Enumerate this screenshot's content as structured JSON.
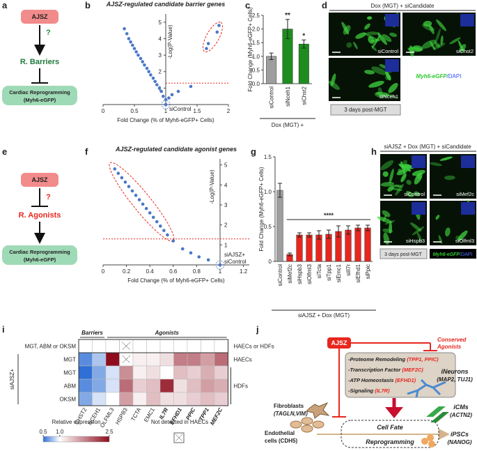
{
  "panel_labels": [
    "a",
    "b",
    "c",
    "d",
    "e",
    "f",
    "g",
    "h",
    "i",
    "j"
  ],
  "diagram_a": {
    "top": "AJSZ",
    "mark": "?",
    "middle": "R. Barriers",
    "bottom": "Cardiac Reprogramming",
    "bottom_note": "(Myh6-eGFP)"
  },
  "diagram_e": {
    "top": "AJSZ",
    "mark": "?",
    "middle": "R. Agonists",
    "bottom": "Cardiac Reprogramming",
    "bottom_note": "(Myh6-eGFP)"
  },
  "image_d": {
    "title": "Dox (MGT) + siCandidate",
    "tiles": [
      "siControl",
      "siChst2",
      "siNceh1"
    ],
    "stain": "Myh6-eGFP",
    "stain2": "/DAPI",
    "caption": "3 days post-MGT"
  },
  "image_h": {
    "title": "siAJSZ + Dox (MGT) + siCandidate",
    "tiles": [
      "siControl",
      "siMef2c",
      "siHspb3",
      "siOlfml3"
    ],
    "stain": "Myh6-eGFP",
    "stain2": "/DAPI",
    "caption": "3 days post-MGT"
  },
  "chart_data": [
    {
      "type": "scatter",
      "title": "AJSZ-regulated candidate barrier genes",
      "xlabel": "Fold Change (% of Myh6-eGFP+ Cells)",
      "ylabel": "-Log(P-Value)",
      "x": [
        0.34,
        0.38,
        0.41,
        0.44,
        0.47,
        0.5,
        0.53,
        0.56,
        0.6,
        0.63,
        0.66,
        0.7,
        0.73,
        0.76,
        0.8,
        0.83,
        0.86,
        0.9,
        0.93,
        0.96,
        1.0,
        1.05,
        1.1,
        1.2,
        1.4,
        1.0,
        1.65,
        1.68,
        1.82,
        1.85
      ],
      "values": [
        4.6,
        4.3,
        4.0,
        3.8,
        3.6,
        3.4,
        3.2,
        3.0,
        2.8,
        2.6,
        2.4,
        2.2,
        2.0,
        1.8,
        1.6,
        1.4,
        1.2,
        1.0,
        0.8,
        0.5,
        0.3,
        0.4,
        0.6,
        0.8,
        1.1,
        0.0,
        3.4,
        3.7,
        4.4,
        4.8
      ],
      "color": "#4a78c8",
      "xlim": [
        0,
        2
      ],
      "ylim": [
        0,
        5.5
      ],
      "xticks": [
        0,
        0.5,
        1,
        1.5,
        2
      ],
      "yticks": [
        1,
        2,
        3,
        4,
        5
      ],
      "threshold": 1.3,
      "annotation": [
        "siControl"
      ]
    },
    {
      "type": "bar",
      "ylabel": "Fold Change (Myh6-eGFP+ Cells)",
      "xlabel": "Dox (MGT) +",
      "categories": [
        "siControl",
        "siNceh1",
        "siChst2"
      ],
      "values": [
        1.0,
        2.0,
        1.45
      ],
      "errors": [
        0.12,
        0.35,
        0.15
      ],
      "colors": [
        "#9e9e9e",
        "#1e8c1e",
        "#1e8c1e"
      ],
      "significance": [
        null,
        "**",
        "*"
      ],
      "ylim": [
        0,
        2.5
      ],
      "yticks": [
        {
          "value": 0,
          "label": "0.0"
        },
        0.5,
        {
          "value": 1,
          "label": "1.0"
        },
        1.5,
        {
          "value": 2,
          "label": "2.0"
        },
        2.5
      ]
    },
    {
      "type": "scatter",
      "title": "AJSZ-regulated candidate agonist genes",
      "xlabel": "Fold Change (%  of Myh6-eGFP+ Cells)",
      "ylabel": "-Log(P-Value)",
      "x": [
        0.1,
        0.13,
        0.16,
        0.19,
        0.22,
        0.25,
        0.28,
        0.31,
        0.34,
        0.37,
        0.4,
        0.43,
        0.46,
        0.49,
        0.52,
        0.55,
        0.6,
        0.68,
        0.75,
        0.82,
        0.9,
        1.0
      ],
      "values": [
        4.8,
        4.58,
        4.36,
        4.14,
        3.92,
        3.7,
        3.48,
        3.26,
        3.04,
        2.82,
        2.6,
        2.38,
        2.16,
        1.94,
        1.72,
        1.5,
        1.2,
        0.8,
        0.6,
        0.4,
        0.25,
        0.0
      ],
      "color": "#4a78c8",
      "xlim": [
        0,
        1.25
      ],
      "ylim": [
        0,
        5.3
      ],
      "xticks": [
        0,
        0.2,
        0.4,
        0.6,
        0.8,
        1,
        1.2
      ],
      "yticks": [
        1,
        2,
        3,
        4,
        5
      ],
      "threshold": 1.3,
      "annotation": [
        "siAJSZ+",
        "siControl"
      ]
    },
    {
      "type": "bar",
      "ylabel": "Fold Change (Myh6-eGFP+ Cells)",
      "xlabel": "siAJSZ + Dox (MGT)",
      "categories": [
        "siControl",
        "siMef2c",
        "siHspb3",
        "siOlfml3",
        "siTcta",
        "siTpp1",
        "siEmc1",
        "siIl7r",
        "siEfhd1",
        "siPpic"
      ],
      "values": [
        1.02,
        0.1,
        0.38,
        0.38,
        0.38,
        0.39,
        0.43,
        0.45,
        0.48,
        0.48
      ],
      "errors": [
        0.1,
        0.02,
        0.03,
        0.03,
        0.06,
        0.06,
        0.08,
        0.06,
        0.04,
        0.04
      ],
      "colors": [
        "#9e9e9e",
        "#e8261e",
        "#e8261e",
        "#e8261e",
        "#e8261e",
        "#e8261e",
        "#e8261e",
        "#e8261e",
        "#e8261e",
        "#e8261e"
      ],
      "significance": "****",
      "ylim": [
        0,
        1.5
      ],
      "yticks": [
        0,
        0.5,
        {
          "value": 1,
          "label": "1.0"
        },
        1.5
      ]
    },
    {
      "type": "heatmap",
      "columns": [
        "CHST2",
        "NCEH1",
        "OLFML3",
        "HSPB3",
        "TCTA",
        "EMC1",
        "IL7R",
        "EFHD1",
        "PPIC",
        "TPP1",
        "MEF2C"
      ],
      "rows": [
        "MGT, ABM or OKSM",
        "MGT",
        "MGT",
        "ABM",
        "OKSM"
      ],
      "values": [
        [
          1,
          1,
          1,
          null,
          1,
          1,
          1,
          1,
          1,
          1,
          1
        ],
        [
          0.6,
          0.8,
          2.5,
          null,
          1.1,
          1.1,
          1.2,
          1.8,
          1.8,
          1.6,
          1.9
        ],
        [
          0.5,
          0.7,
          0.9,
          1.7,
          1.1,
          1.2,
          1.0,
          1.4,
          1.3,
          1.5,
          1.3
        ],
        [
          0.6,
          0.7,
          0.9,
          1.9,
          1.3,
          1.4,
          2.3,
          1.2,
          1.4,
          1.6,
          1.5
        ],
        [
          0.7,
          0.9,
          1.0,
          1.6,
          1.1,
          1.4,
          1.2,
          1.2,
          1.3,
          1.4,
          1.3
        ]
      ],
      "column_groups": [
        "Barriers",
        "Agonists"
      ],
      "row_group": "siAJSZ+",
      "right_labels": [
        "HAECs or HDFs",
        "HAECs",
        "HDFs"
      ],
      "colorbar_title": "Relative expression",
      "zlim": [
        0.5,
        2.5
      ],
      "zticks": [
        0.5,
        {
          "value": 1,
          "label": "1.0"
        },
        2.5
      ],
      "colors": [
        "#2f6fd6",
        "#ffffff",
        "#8e0c1c"
      ],
      "null_label": "Not detected in HAECs"
    }
  ],
  "diagram_j": {
    "top": "AJSZ",
    "conserved": "Conserved",
    "agonists": "Agonists",
    "items": [
      {
        "label": "-Proteome Remodeling",
        "genes": "(TPP1, PPIC)"
      },
      {
        "label": "-Transcription Factor",
        "genes": "(MEF2C)"
      },
      {
        "label": "-ATP Homeostasis",
        "genes": "(EFHD1)"
      },
      {
        "label": "-Signaling",
        "genes": "(IL7R)"
      }
    ],
    "fibroblasts": "Fibroblasts",
    "fibroblast_markers": "(TAGLN,VIM)",
    "endothelial": "Endothelial",
    "endothelial_markers": "cells (CDH5)",
    "center": "Cell Fate",
    "center2": "Reprogramming",
    "neurons": "iNeurons",
    "neuron_markers": "(MAP2, TUJ1)",
    "cms": "iCMs",
    "cm_markers": "(ACTN2)",
    "ipscs": "iPSCs",
    "ipsc_markers": "(NANOG)"
  }
}
